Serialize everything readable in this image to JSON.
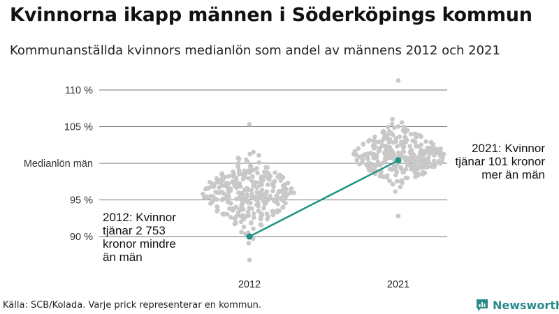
{
  "title": "Kvinnorna ikapp männen i Söderköpings kommun",
  "subtitle": "Kommunanställda kvinnors medianlön som andel av männens 2012 och 2021",
  "footer": "Källa: SCB/Kolada. Varje prick representerar en kommun.",
  "brand": "Newsworthy",
  "colors": {
    "dots": "#c8c8c8",
    "highlight": "#1f9483",
    "gridline": "#444444",
    "brand": "#2a8a8a"
  },
  "chart_data": {
    "type": "scatter",
    "categories": [
      "2012",
      "2021"
    ],
    "y_ticks": [
      {
        "value": 90,
        "label": "90 %"
      },
      {
        "value": 95,
        "label": "95 %"
      },
      {
        "value": 100,
        "label": "Medianlön män"
      },
      {
        "value": 105,
        "label": "105 %"
      },
      {
        "value": 110,
        "label": "110 %"
      }
    ],
    "ylim": [
      86.5,
      111.5
    ],
    "grid": "horizontal lines at tick values",
    "highlight": {
      "name": "Söderköping",
      "values": [
        {
          "x": "2012",
          "y": 90.0
        },
        {
          "x": "2021",
          "y": 100.4
        }
      ]
    },
    "annotations": [
      {
        "x": "2012",
        "lines": [
          "2012: Kvinnor",
          "tjänar 2 753",
          "kronor mindre",
          "än män"
        ]
      },
      {
        "x": "2021",
        "lines": [
          "2021: Kvinnor",
          "tjänar 101 kronor",
          "mer än män"
        ]
      }
    ],
    "distribution": [
      {
        "x": "2012",
        "count": 290,
        "median": 95.8,
        "min": 86.8,
        "max": 105.3,
        "spread": 4.0
      },
      {
        "x": "2021",
        "count": 290,
        "median": 101.0,
        "min": 92.8,
        "max": 111.3,
        "spread": 3.2
      }
    ],
    "xlabel": "",
    "ylabel": ""
  }
}
